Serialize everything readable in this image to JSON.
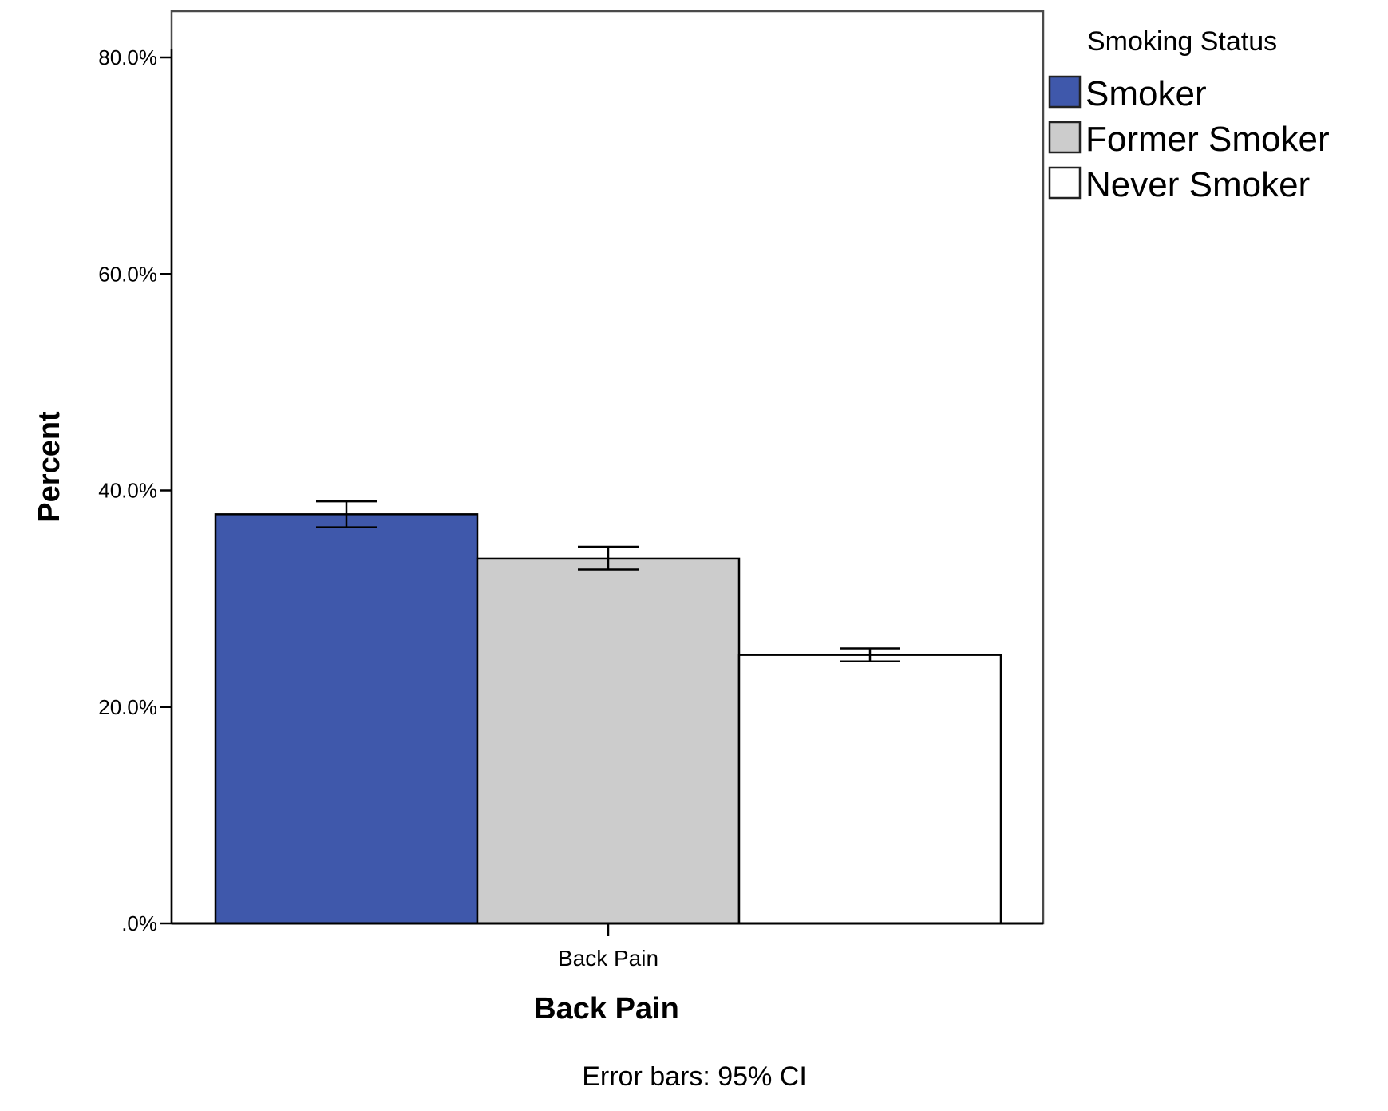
{
  "chart_data": {
    "type": "bar",
    "categories": [
      "Back Pain"
    ],
    "series": [
      {
        "name": "Smoker",
        "color": "#3f58ab",
        "values": [
          37.8
        ],
        "ci_low": [
          36.6
        ],
        "ci_high": [
          39.0
        ]
      },
      {
        "name": "Former Smoker",
        "color": "#cccccc",
        "values": [
          33.7
        ],
        "ci_low": [
          32.7
        ],
        "ci_high": [
          34.8
        ]
      },
      {
        "name": "Never Smoker",
        "color": "#ffffff",
        "values": [
          24.8
        ],
        "ci_low": [
          24.2
        ],
        "ci_high": [
          25.4
        ]
      }
    ],
    "xlabel": "Back Pain",
    "ylabel": "Percent",
    "ylim": [
      0,
      80
    ],
    "yticks": [
      0,
      20,
      40,
      60,
      80
    ],
    "ytick_labels": [
      ".0%",
      "20.0%",
      "40.0%",
      "60.0%",
      "80.0%"
    ],
    "legend": {
      "title": "Smoking Status",
      "position": "right"
    },
    "footnote": "Error bars: 95% CI",
    "grid": false
  }
}
